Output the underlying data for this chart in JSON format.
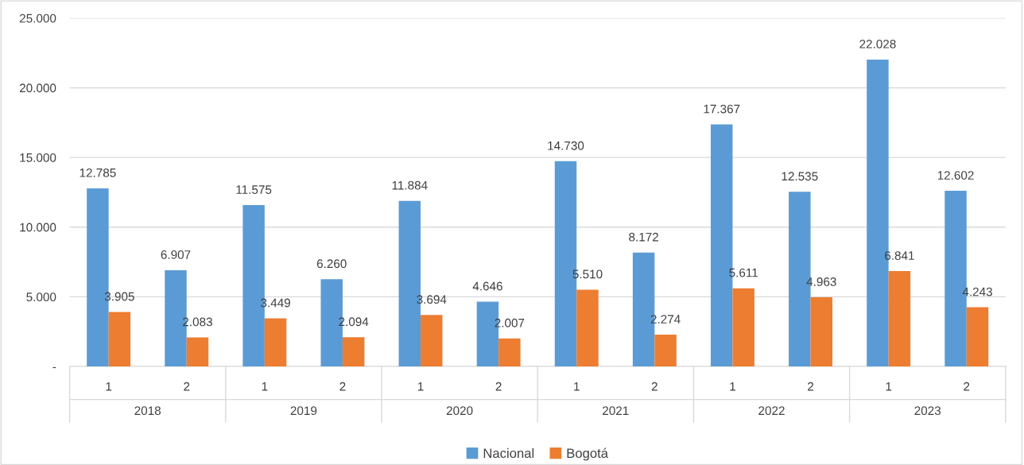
{
  "chart_data": {
    "type": "bar",
    "categories": [
      "1",
      "2",
      "1",
      "2",
      "1",
      "2",
      "1",
      "2",
      "1",
      "2",
      "1",
      "2"
    ],
    "annotations": [
      "2018",
      "2019",
      "2020",
      "2021",
      "2022",
      "2023"
    ],
    "series": [
      {
        "name": "Nacional",
        "color": "#5b9bd5",
        "values": [
          12785,
          6907,
          11575,
          6260,
          11884,
          4646,
          14730,
          8172,
          17367,
          12535,
          22028,
          12602
        ],
        "value_labels": [
          "12.785",
          "6.907",
          "11.575",
          "6.260",
          "11.884",
          "4.646",
          "14.730",
          "8.172",
          "17.367",
          "12.535",
          "22.028",
          "12.602"
        ]
      },
      {
        "name": "Bogotá",
        "color": "#ed7d31",
        "values": [
          3905,
          2083,
          3449,
          2094,
          3694,
          2007,
          5510,
          2274,
          5611,
          4963,
          6841,
          4243
        ],
        "value_labels": [
          "3.905",
          "2.083",
          "3.449",
          "2.094",
          "3.694",
          "2.007",
          "5.510",
          "2.274",
          "5.611",
          "4.963",
          "6.841",
          "4.243"
        ]
      }
    ],
    "ylim": [
      0,
      25000
    ],
    "yticks": [
      {
        "value": 0,
        "label": "-"
      },
      {
        "value": 5000,
        "label": "5.000"
      },
      {
        "value": 10000,
        "label": "10.000"
      },
      {
        "value": 15000,
        "label": "15.000"
      },
      {
        "value": 20000,
        "label": "20.000"
      },
      {
        "value": 25000,
        "label": "25.000"
      }
    ],
    "grid": "y",
    "legend": "bottom"
  }
}
